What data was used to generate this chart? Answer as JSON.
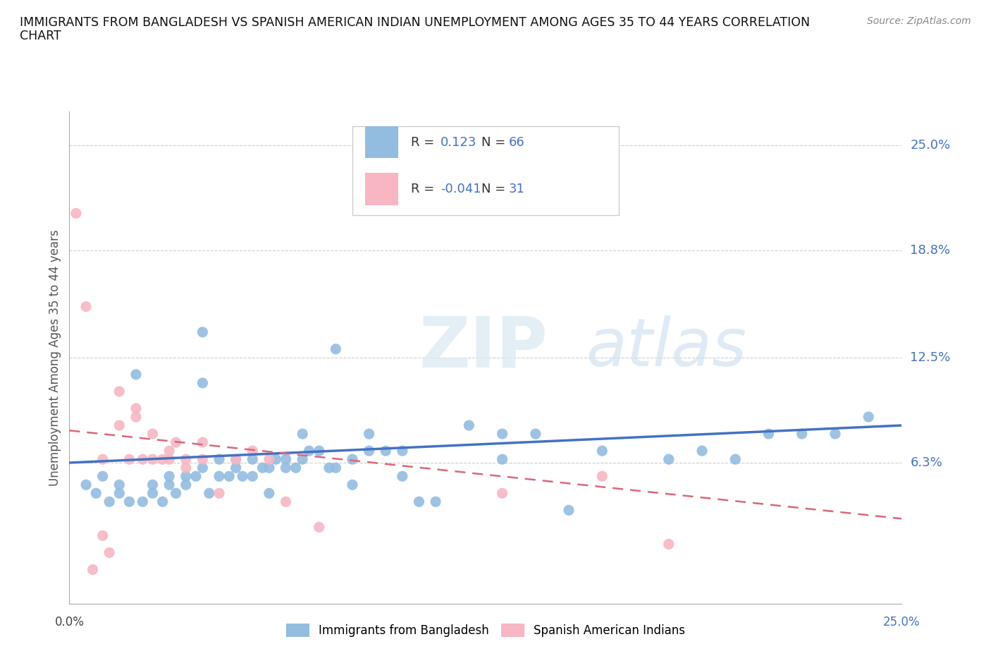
{
  "title_line1": "IMMIGRANTS FROM BANGLADESH VS SPANISH AMERICAN INDIAN UNEMPLOYMENT AMONG AGES 35 TO 44 YEARS CORRELATION",
  "title_line2": "CHART",
  "source": "Source: ZipAtlas.com",
  "ylabel": "Unemployment Among Ages 35 to 44 years",
  "yticks_labels": [
    "25.0%",
    "18.8%",
    "12.5%",
    "6.3%"
  ],
  "ytick_vals": [
    0.25,
    0.188,
    0.125,
    0.063
  ],
  "xlim": [
    0.0,
    0.25
  ],
  "ylim": [
    -0.02,
    0.27
  ],
  "blue_color": "#92bce0",
  "pink_color": "#f7b6c2",
  "blue_line_color": "#4472c4",
  "pink_line_color": "#d9687a",
  "watermark_zip": "ZIP",
  "watermark_atlas": "atlas",
  "blue_scatter_x": [
    0.005,
    0.008,
    0.01,
    0.012,
    0.015,
    0.015,
    0.018,
    0.02,
    0.022,
    0.025,
    0.025,
    0.028,
    0.03,
    0.03,
    0.032,
    0.035,
    0.035,
    0.038,
    0.04,
    0.04,
    0.04,
    0.042,
    0.045,
    0.045,
    0.048,
    0.05,
    0.05,
    0.052,
    0.055,
    0.055,
    0.058,
    0.06,
    0.06,
    0.062,
    0.065,
    0.065,
    0.068,
    0.07,
    0.07,
    0.072,
    0.075,
    0.078,
    0.08,
    0.08,
    0.085,
    0.085,
    0.09,
    0.09,
    0.095,
    0.1,
    0.1,
    0.105,
    0.11,
    0.12,
    0.13,
    0.13,
    0.14,
    0.15,
    0.16,
    0.18,
    0.19,
    0.2,
    0.21,
    0.22,
    0.23,
    0.24
  ],
  "blue_scatter_y": [
    0.05,
    0.045,
    0.055,
    0.04,
    0.05,
    0.045,
    0.04,
    0.115,
    0.04,
    0.045,
    0.05,
    0.04,
    0.05,
    0.055,
    0.045,
    0.055,
    0.05,
    0.055,
    0.06,
    0.11,
    0.14,
    0.045,
    0.055,
    0.065,
    0.055,
    0.06,
    0.065,
    0.055,
    0.055,
    0.065,
    0.06,
    0.045,
    0.06,
    0.065,
    0.06,
    0.065,
    0.06,
    0.065,
    0.08,
    0.07,
    0.07,
    0.06,
    0.13,
    0.06,
    0.05,
    0.065,
    0.08,
    0.07,
    0.07,
    0.055,
    0.07,
    0.04,
    0.04,
    0.085,
    0.065,
    0.08,
    0.08,
    0.035,
    0.07,
    0.065,
    0.07,
    0.065,
    0.08,
    0.08,
    0.08,
    0.09
  ],
  "pink_scatter_x": [
    0.002,
    0.005,
    0.007,
    0.01,
    0.01,
    0.012,
    0.015,
    0.015,
    0.018,
    0.02,
    0.02,
    0.022,
    0.025,
    0.025,
    0.028,
    0.03,
    0.03,
    0.032,
    0.035,
    0.035,
    0.04,
    0.04,
    0.045,
    0.05,
    0.055,
    0.06,
    0.065,
    0.075,
    0.13,
    0.16,
    0.18
  ],
  "pink_scatter_y": [
    0.21,
    0.155,
    0.0,
    0.02,
    0.065,
    0.01,
    0.105,
    0.085,
    0.065,
    0.09,
    0.095,
    0.065,
    0.065,
    0.08,
    0.065,
    0.065,
    0.07,
    0.075,
    0.06,
    0.065,
    0.065,
    0.075,
    0.045,
    0.065,
    0.07,
    0.065,
    0.04,
    0.025,
    0.045,
    0.055,
    0.015
  ],
  "blue_trendline_x": [
    0.0,
    0.25
  ],
  "blue_trendline_y": [
    0.063,
    0.085
  ],
  "pink_trendline_x": [
    0.0,
    0.25
  ],
  "pink_trendline_y": [
    0.082,
    0.03
  ]
}
